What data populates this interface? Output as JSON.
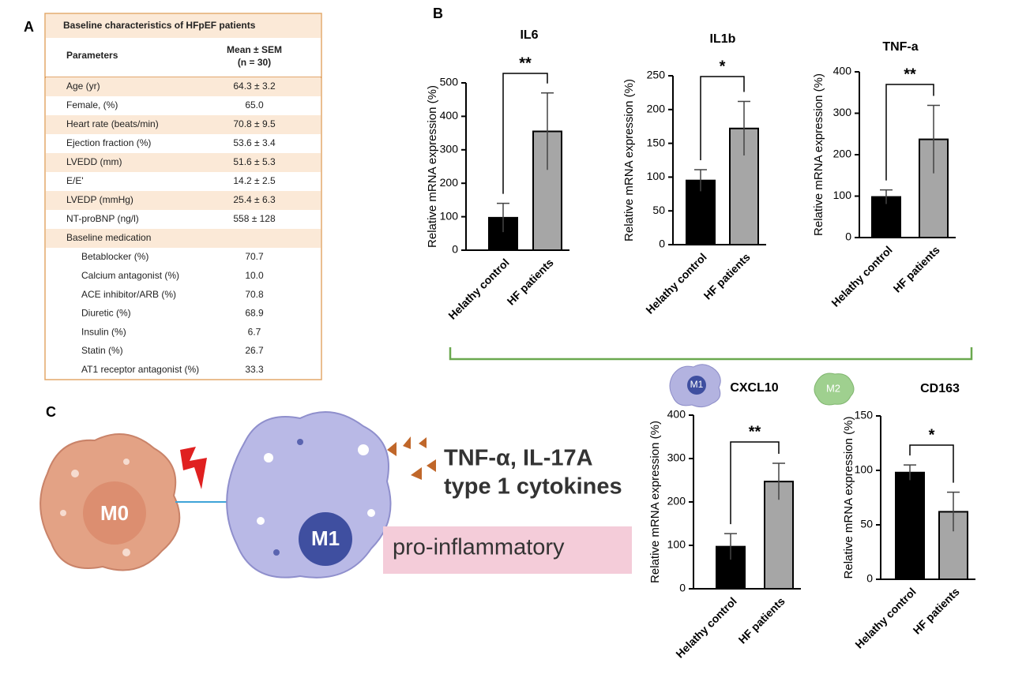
{
  "panels": [
    "A",
    "B",
    "C"
  ],
  "table": {
    "title": "Baseline characteristics of HFpEF patients",
    "header": {
      "parameter": "Parameters",
      "value": "Mean ± SEM",
      "n": "(n = 30)"
    },
    "rows": [
      [
        "Age (yr)",
        "64.3 ± 3.2"
      ],
      [
        "Female, (%)",
        "65.0"
      ],
      [
        "Heart rate (beats/min)",
        "70.8 ± 9.5"
      ],
      [
        "Ejection fraction (%)",
        "53.6 ± 3.4"
      ],
      [
        "LVEDD (mm)",
        "51.6 ± 5.3"
      ],
      [
        "E/E'",
        "14.2 ± 2.5"
      ],
      [
        "LVEDP (mmHg)",
        "25.4 ± 6.3"
      ],
      [
        "NT-proBNP (ng/l)",
        "558 ± 128"
      ]
    ],
    "section": "Baseline medication",
    "medications": [
      [
        "Betablocker (%)",
        "70.7"
      ],
      [
        "Calcium antagonist (%)",
        "10.0"
      ],
      [
        "ACE inhibitor/ARB (%)",
        "70.8"
      ],
      [
        "Diuretic (%)",
        "68.9"
      ],
      [
        "Insulin (%)",
        "6.7"
      ],
      [
        "Statin (%)",
        "26.7"
      ],
      [
        "AT1 receptor antagonist (%)",
        "33.3"
      ]
    ]
  },
  "chart_data": [
    {
      "type": "bar",
      "title": "IL6",
      "ylabel": "Relative mRNA expression (%)",
      "categories": [
        "Helathy control",
        "HF patients"
      ],
      "values": [
        97,
        355
      ],
      "errors": [
        43,
        115
      ],
      "colors": [
        "#000000",
        "#a6a6a6"
      ],
      "ylim": [
        0,
        500
      ],
      "yticks": [
        0,
        100,
        200,
        300,
        400,
        500
      ],
      "significance": "**"
    },
    {
      "type": "bar",
      "title": "IL1b",
      "ylabel": "Relative mRNA expression (%)",
      "categories": [
        "Helathy control",
        "HF patients"
      ],
      "values": [
        95,
        172
      ],
      "errors": [
        16,
        40
      ],
      "colors": [
        "#000000",
        "#a6a6a6"
      ],
      "ylim": [
        0,
        250
      ],
      "yticks": [
        0,
        50,
        100,
        150,
        200,
        250
      ],
      "significance": "*"
    },
    {
      "type": "bar",
      "title": "TNF-a",
      "ylabel": "Relative mRNA expression (%)",
      "categories": [
        "Helathy control",
        "HF patients"
      ],
      "values": [
        98,
        237
      ],
      "errors": [
        17,
        82
      ],
      "colors": [
        "#000000",
        "#a6a6a6"
      ],
      "ylim": [
        0,
        400
      ],
      "yticks": [
        0,
        100,
        200,
        300,
        400
      ],
      "significance": "**"
    },
    {
      "type": "bar",
      "title": "CXCL10",
      "ylabel": "Relative mRNA expression (%)",
      "categories": [
        "Helathy control",
        "HF patients"
      ],
      "values": [
        97,
        247
      ],
      "errors": [
        30,
        42
      ],
      "colors": [
        "#000000",
        "#a6a6a6"
      ],
      "ylim": [
        0,
        400
      ],
      "yticks": [
        0,
        100,
        200,
        300,
        400
      ],
      "significance": "**"
    },
    {
      "type": "bar",
      "title": "CD163",
      "ylabel": "Relative mRNA expression (%)",
      "categories": [
        "Helathy control",
        "HF patients"
      ],
      "values": [
        98,
        62
      ],
      "errors": [
        7,
        18
      ],
      "colors": [
        "#000000",
        "#a6a6a6"
      ],
      "ylim": [
        0,
        150
      ],
      "yticks": [
        0,
        50,
        100,
        150
      ],
      "significance": "*"
    }
  ],
  "diagram": {
    "m0": "M0",
    "m1": "M1",
    "icon_m1": "M1",
    "icon_m2": "M2",
    "cytokines": [
      "TNF-α, IL-17A",
      "type 1 cytokines"
    ],
    "box": "pro-inflammatory"
  }
}
